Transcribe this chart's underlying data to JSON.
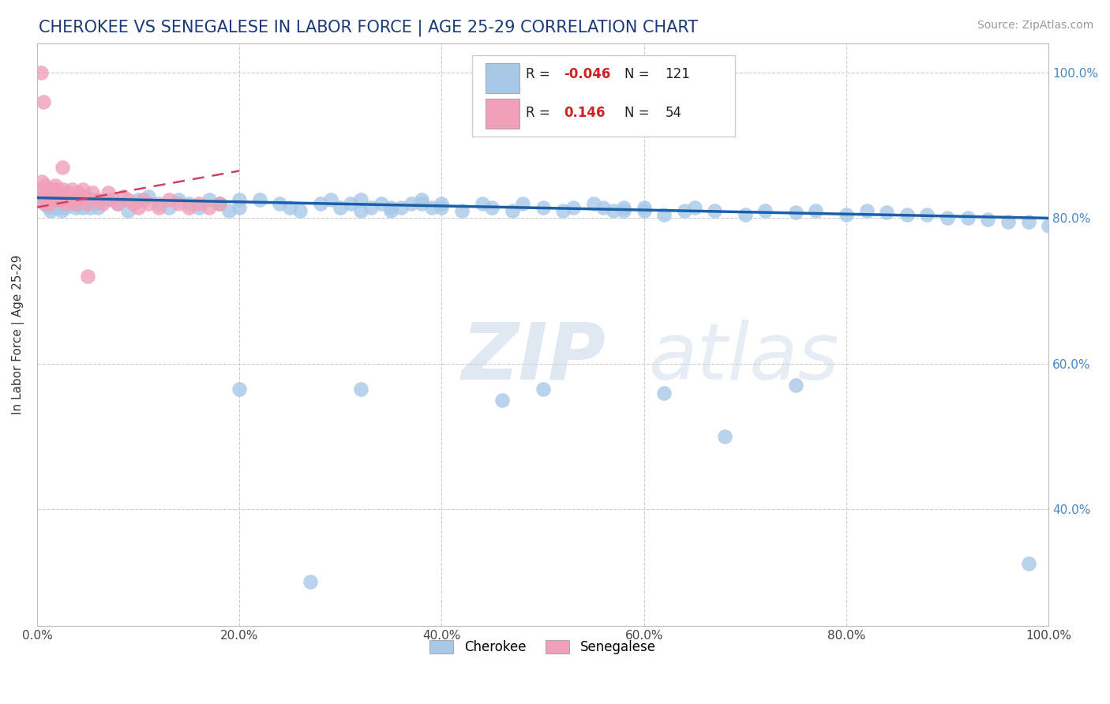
{
  "title": "CHEROKEE VS SENEGALESE IN LABOR FORCE | AGE 25-29 CORRELATION CHART",
  "source_text": "Source: ZipAtlas.com",
  "ylabel": "In Labor Force | Age 25-29",
  "watermark_zip": "ZIP",
  "watermark_atlas": "atlas",
  "legend_r_cherokee": "-0.046",
  "legend_n_cherokee": "121",
  "legend_r_senegalese": "0.146",
  "legend_n_senegalese": "54",
  "cherokee_color": "#a8c8e8",
  "senegalese_color": "#f0a0b8",
  "cherokee_line_color": "#1a5fa8",
  "senegalese_line_color": "#d04060",
  "background_color": "#ffffff",
  "title_color": "#1a3a7a",
  "right_tick_color": "#4488cc",
  "grid_color": "#cccccc",
  "x_min": 0.0,
  "x_max": 1.0,
  "y_min": 0.24,
  "y_max": 1.04
}
